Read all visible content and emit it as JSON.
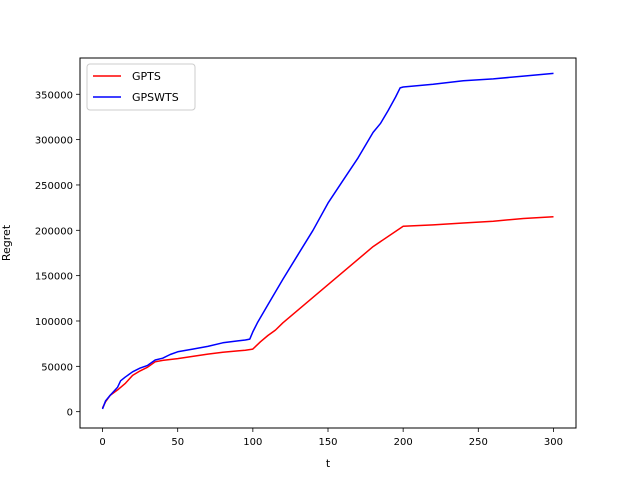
{
  "chart_data": {
    "type": "line",
    "title": "",
    "xlabel": "t",
    "ylabel": "Regret",
    "xlim": [
      -15,
      315
    ],
    "ylim": [
      -18000,
      390000
    ],
    "xticks": [
      0,
      50,
      100,
      150,
      200,
      250,
      300
    ],
    "xtick_labels": [
      "0",
      "50",
      "100",
      "150",
      "200",
      "250",
      "300"
    ],
    "yticks": [
      0,
      50000,
      100000,
      150000,
      200000,
      250000,
      300000,
      350000
    ],
    "ytick_labels": [
      "0",
      "50000",
      "100000",
      "150000",
      "200000",
      "250000",
      "300000",
      "350000"
    ],
    "grid": false,
    "legend_position": "upper left",
    "series": [
      {
        "name": "GPTS",
        "color": "#ff0000",
        "x": [
          0,
          2,
          5,
          10,
          15,
          20,
          25,
          30,
          35,
          40,
          50,
          60,
          70,
          80,
          90,
          95,
          100,
          105,
          110,
          115,
          120,
          150,
          180,
          200,
          220,
          240,
          260,
          280,
          300
        ],
        "y": [
          4000,
          11000,
          18000,
          24000,
          31000,
          40000,
          45000,
          49000,
          55000,
          56500,
          58500,
          61000,
          63500,
          65500,
          67000,
          67800,
          69000,
          77000,
          84000,
          90000,
          98000,
          140000,
          182000,
          204500,
          206000,
          208000,
          210000,
          213000,
          215000
        ]
      },
      {
        "name": "GPSWTS",
        "color": "#0000ff",
        "x": [
          0,
          2,
          5,
          10,
          12,
          15,
          20,
          25,
          30,
          35,
          40,
          45,
          50,
          60,
          70,
          80,
          90,
          95,
          98,
          100,
          103,
          110,
          120,
          130,
          140,
          150,
          160,
          170,
          180,
          185,
          190,
          195,
          198,
          200,
          220,
          240,
          260,
          280,
          300
        ],
        "y": [
          3000,
          12000,
          18000,
          27000,
          34000,
          38000,
          44000,
          48000,
          51000,
          57000,
          59000,
          63000,
          66000,
          69000,
          72000,
          76000,
          78000,
          79000,
          80000,
          88000,
          98000,
          118000,
          146000,
          173000,
          200000,
          230000,
          255000,
          280000,
          308000,
          318000,
          332000,
          347000,
          357000,
          358000,
          361000,
          365000,
          367000,
          370000,
          373000
        ]
      }
    ]
  }
}
